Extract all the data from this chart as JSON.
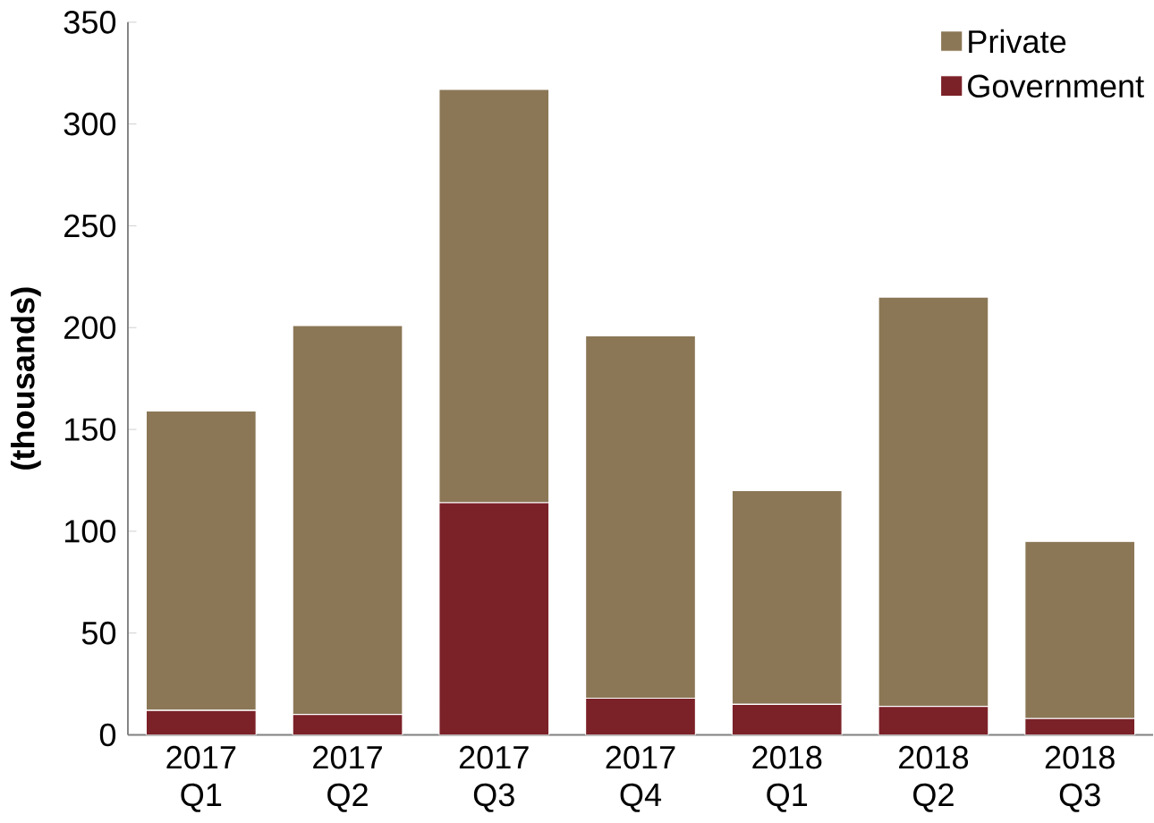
{
  "chart_data": {
    "type": "bar",
    "stacked": true,
    "ylabel": "(thousands)",
    "categories": [
      "2017 Q1",
      "2017 Q2",
      "2017 Q3",
      "2017 Q4",
      "2018 Q1",
      "2018 Q2",
      "2018 Q3"
    ],
    "series": [
      {
        "name": "Government",
        "color": "#7b2128",
        "values": [
          12,
          10,
          114,
          18,
          15,
          14,
          8
        ]
      },
      {
        "name": "Private",
        "color": "#8b7756",
        "values": [
          147,
          191,
          203,
          178,
          105,
          201,
          87
        ]
      }
    ],
    "ylim": [
      0,
      350
    ],
    "yticks": [
      0,
      50,
      100,
      150,
      200,
      250,
      300,
      350
    ],
    "legend": "top right",
    "grid": false
  }
}
